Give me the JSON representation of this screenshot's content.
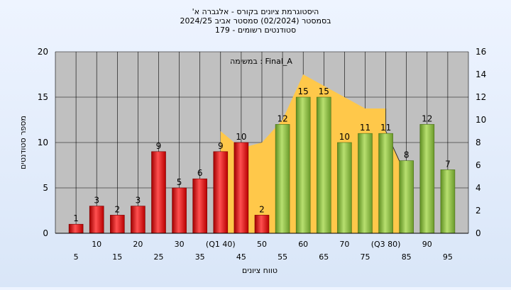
{
  "chart_data": {
    "type": "bar",
    "title_lines": [
      "'היסטוגרמת ציונים בקורס - אלגברה א",
      "בסמסטר  (02/2024)  סמסטר אביב 2024/25",
      "סטודנטים רשומים - 179"
    ],
    "annotation": "במשימה : Final_A",
    "xlabel": "טווח ציונים",
    "ylabel": "מספר סטודנטים",
    "categories": [
      "5",
      "10",
      "15",
      "20",
      "25",
      "30",
      "35",
      "(Q1 40)",
      "45",
      "50",
      "55",
      "60",
      "65",
      "70",
      "75",
      "(Q3 80)",
      "85",
      "90",
      "95"
    ],
    "values": [
      1,
      3,
      2,
      3,
      9,
      5,
      6,
      9,
      10,
      2,
      12,
      15,
      15,
      10,
      11,
      11,
      8,
      12,
      7
    ],
    "bar_colors": [
      "red",
      "red",
      "red",
      "red",
      "red",
      "red",
      "red",
      "red",
      "red",
      "red",
      "green",
      "green",
      "green",
      "green",
      "green",
      "green",
      "green",
      "green",
      "green"
    ],
    "area_x": [
      40,
      40,
      45,
      50,
      55,
      60,
      65,
      70,
      75,
      80,
      80,
      85
    ],
    "area_y": [
      0,
      9,
      7.5,
      8,
      10,
      14,
      13,
      12,
      11,
      11,
      9,
      5
    ],
    "ylim": [
      0,
      20
    ],
    "y_ticks": [
      0,
      5,
      10,
      15,
      20
    ],
    "y2lim": [
      0,
      16
    ],
    "y2_ticks": [
      0,
      2,
      4,
      6,
      8,
      10,
      12,
      14,
      16
    ],
    "grid": true,
    "colors": {
      "red_bar": "#d92020",
      "green_bar": "#8fc048",
      "area_fill": "#ffc84a",
      "plot_bg": "#c0c0c0"
    }
  }
}
